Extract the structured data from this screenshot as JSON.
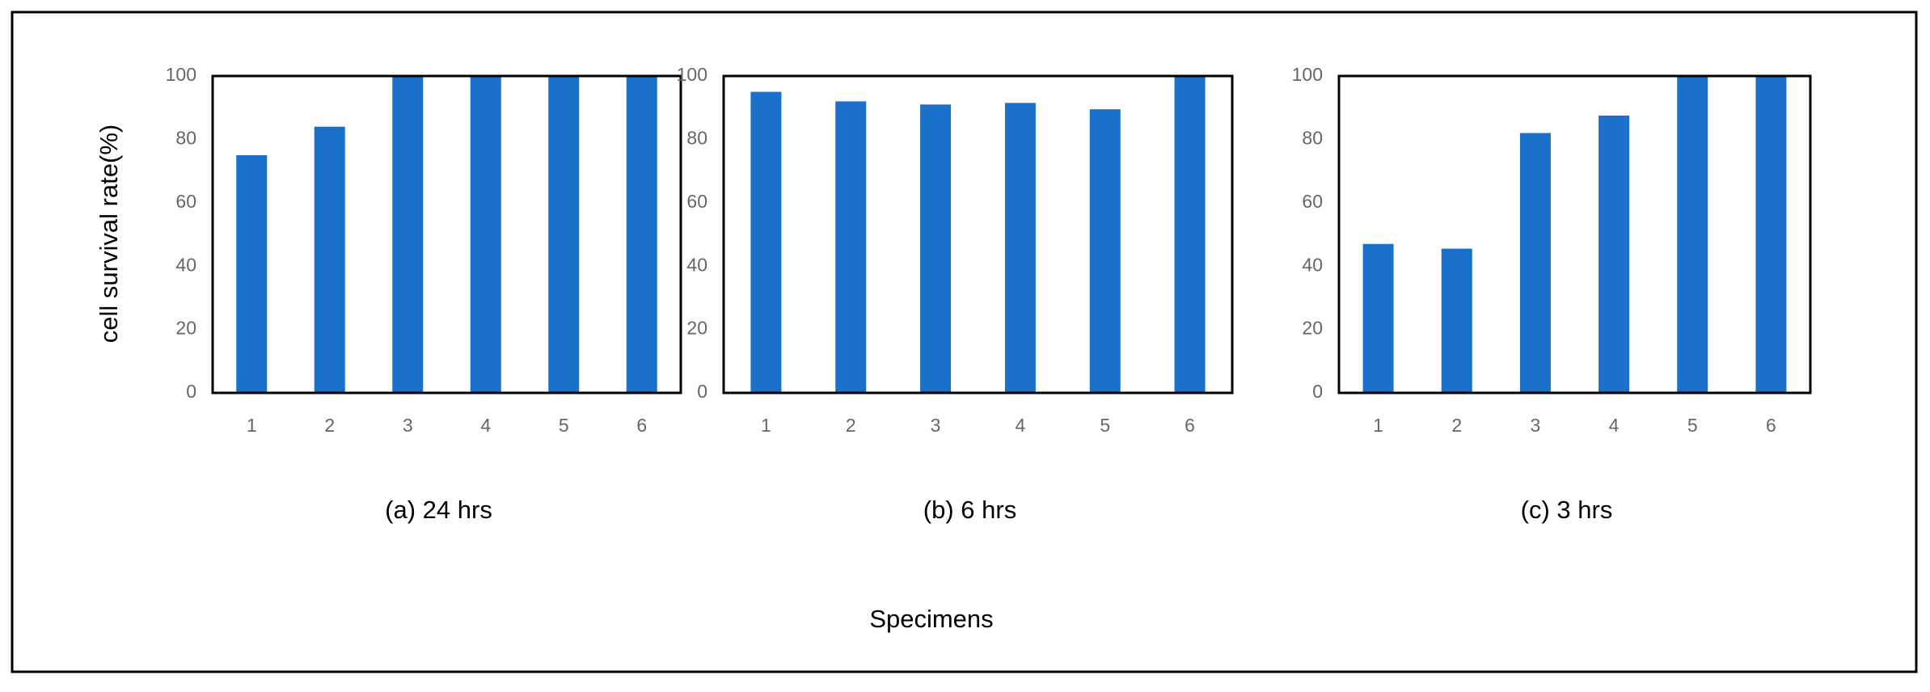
{
  "chart_data": [
    {
      "type": "bar",
      "title": "(a) 24 hrs",
      "ylabel": "cell survival rate(%)",
      "categories": [
        "1",
        "2",
        "3",
        "4",
        "5",
        "6"
      ],
      "values": [
        75,
        84,
        100,
        100,
        100,
        100
      ],
      "color": "#1a71c9",
      "ylim": [
        0,
        100
      ],
      "yticks": [
        0,
        20,
        40,
        60,
        80,
        100
      ]
    },
    {
      "type": "bar",
      "title": "(b) 6 hrs",
      "categories": [
        "1",
        "2",
        "3",
        "4",
        "5",
        "6"
      ],
      "values": [
        95,
        92,
        91,
        91.5,
        89.5,
        100
      ],
      "color": "#1a71c9",
      "ylim": [
        0,
        100
      ],
      "yticks": [
        0,
        20,
        40,
        60,
        80,
        100
      ]
    },
    {
      "type": "bar",
      "title": "(c) 3 hrs",
      "categories": [
        "1",
        "2",
        "3",
        "4",
        "5",
        "6"
      ],
      "values": [
        47,
        45.5,
        82,
        87.5,
        100,
        100
      ],
      "color": "#1a71c9",
      "ylim": [
        0,
        100
      ],
      "yticks": [
        0,
        20,
        40,
        60,
        80,
        100
      ]
    }
  ],
  "xlabel": "Specimens"
}
